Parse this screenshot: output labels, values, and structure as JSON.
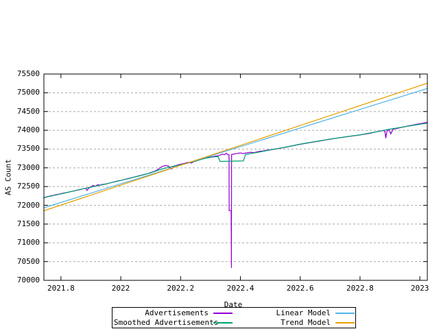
{
  "figure": {
    "background": "#ffffff",
    "frame_color": "#000000",
    "grid_color": "#a8a8a8"
  },
  "chart_data": {
    "type": "line",
    "title": "",
    "xlabel": "Date",
    "ylabel": "AS Count",
    "xlim": [
      2021.743,
      2023.025
    ],
    "ylim": [
      70000,
      75500
    ],
    "grid": "horizontal-dashed",
    "legend_position": "below-plot-boxed",
    "x_ticks": [
      {
        "value": 2021.8,
        "label": "2021.8"
      },
      {
        "value": 2022,
        "label": "2022"
      },
      {
        "value": 2022.2,
        "label": "2022.2"
      },
      {
        "value": 2022.4,
        "label": "2022.4"
      },
      {
        "value": 2022.6,
        "label": "2022.6"
      },
      {
        "value": 2022.8,
        "label": "2022.8"
      },
      {
        "value": 2023,
        "label": "2023"
      }
    ],
    "y_ticks": [
      {
        "value": 70000,
        "label": "70000"
      },
      {
        "value": 70500,
        "label": "70500"
      },
      {
        "value": 71000,
        "label": "71000"
      },
      {
        "value": 71500,
        "label": "71500"
      },
      {
        "value": 72000,
        "label": "72000"
      },
      {
        "value": 72500,
        "label": "72500"
      },
      {
        "value": 73000,
        "label": "73000"
      },
      {
        "value": 73500,
        "label": "73500"
      },
      {
        "value": 74000,
        "label": "74000"
      },
      {
        "value": 74500,
        "label": "74500"
      },
      {
        "value": 75000,
        "label": "75000"
      },
      {
        "value": 75500,
        "label": "75500"
      }
    ],
    "series": [
      {
        "name": "Advertisements",
        "color": "#9400d3",
        "points": [
          [
            2021.743,
            72190
          ],
          [
            2021.75,
            72225
          ],
          [
            2021.757,
            72235
          ],
          [
            2021.765,
            72250
          ],
          [
            2021.775,
            72265
          ],
          [
            2021.785,
            72285
          ],
          [
            2021.795,
            72300
          ],
          [
            2021.805,
            72320
          ],
          [
            2021.815,
            72335
          ],
          [
            2021.825,
            72350
          ],
          [
            2021.835,
            72370
          ],
          [
            2021.845,
            72385
          ],
          [
            2021.855,
            72405
          ],
          [
            2021.865,
            72420
          ],
          [
            2021.875,
            72445
          ],
          [
            2021.883,
            72455
          ],
          [
            2021.887,
            72395
          ],
          [
            2021.893,
            72460
          ],
          [
            2021.9,
            72490
          ],
          [
            2021.908,
            72530
          ],
          [
            2021.915,
            72505
          ],
          [
            2021.922,
            72545
          ],
          [
            2021.93,
            72540
          ],
          [
            2021.94,
            72560
          ],
          [
            2021.95,
            72565
          ],
          [
            2021.96,
            72590
          ],
          [
            2021.97,
            72610
          ],
          [
            2021.98,
            72630
          ],
          [
            2021.99,
            72650
          ],
          [
            2022.0,
            72665
          ],
          [
            2022.01,
            72685
          ],
          [
            2022.02,
            72705
          ],
          [
            2022.03,
            72725
          ],
          [
            2022.04,
            72745
          ],
          [
            2022.05,
            72765
          ],
          [
            2022.06,
            72785
          ],
          [
            2022.07,
            72805
          ],
          [
            2022.08,
            72825
          ],
          [
            2022.09,
            72845
          ],
          [
            2022.1,
            72875
          ],
          [
            2022.11,
            72900
          ],
          [
            2022.12,
            72935
          ],
          [
            2022.13,
            72995
          ],
          [
            2022.14,
            73040
          ],
          [
            2022.15,
            73060
          ],
          [
            2022.158,
            73050
          ],
          [
            2022.165,
            73005
          ],
          [
            2022.17,
            72965
          ],
          [
            2022.177,
            73045
          ],
          [
            2022.185,
            73060
          ],
          [
            2022.193,
            73080
          ],
          [
            2022.2,
            73095
          ],
          [
            2022.21,
            73110
          ],
          [
            2022.22,
            73135
          ],
          [
            2022.23,
            73150
          ],
          [
            2022.235,
            73125
          ],
          [
            2022.245,
            73165
          ],
          [
            2022.255,
            73190
          ],
          [
            2022.265,
            73220
          ],
          [
            2022.275,
            73240
          ],
          [
            2022.285,
            73260
          ],
          [
            2022.295,
            73280
          ],
          [
            2022.305,
            73295
          ],
          [
            2022.315,
            73310
          ],
          [
            2022.325,
            73320
          ],
          [
            2022.333,
            73340
          ],
          [
            2022.34,
            73365
          ],
          [
            2022.347,
            73350
          ],
          [
            2022.353,
            73390
          ],
          [
            2022.358,
            73345
          ],
          [
            2022.362,
            73345
          ],
          [
            2022.3625,
            71860
          ],
          [
            2022.369,
            71860
          ],
          [
            2022.37,
            70330
          ],
          [
            2022.3705,
            73355
          ],
          [
            2022.38,
            73370
          ],
          [
            2022.39,
            73385
          ],
          [
            2022.4,
            73395
          ],
          [
            2022.408,
            73380
          ],
          [
            2022.415,
            73390
          ],
          [
            2022.425,
            73405
          ],
          [
            2022.435,
            73415
          ],
          [
            2022.445,
            73400
          ],
          [
            2022.455,
            73425
          ],
          [
            2022.465,
            73440
          ],
          [
            2022.475,
            73450
          ],
          [
            2022.485,
            73465
          ],
          [
            2022.495,
            73475
          ],
          [
            2022.51,
            73490
          ],
          [
            2022.53,
            73520
          ],
          [
            2022.55,
            73545
          ],
          [
            2022.57,
            73580
          ],
          [
            2022.59,
            73610
          ],
          [
            2022.61,
            73640
          ],
          [
            2022.63,
            73670
          ],
          [
            2022.65,
            73695
          ],
          [
            2022.67,
            73720
          ],
          [
            2022.69,
            73750
          ],
          [
            2022.71,
            73775
          ],
          [
            2022.73,
            73800
          ],
          [
            2022.75,
            73820
          ],
          [
            2022.77,
            73845
          ],
          [
            2022.79,
            73865
          ],
          [
            2022.81,
            73890
          ],
          [
            2022.83,
            73915
          ],
          [
            2022.85,
            73950
          ],
          [
            2022.865,
            73975
          ],
          [
            2022.878,
            73995
          ],
          [
            2022.883,
            73975
          ],
          [
            2022.886,
            73790
          ],
          [
            2022.89,
            73985
          ],
          [
            2022.897,
            74015
          ],
          [
            2022.903,
            73905
          ],
          [
            2022.91,
            74025
          ],
          [
            2022.92,
            74045
          ],
          [
            2022.93,
            74060
          ],
          [
            2022.94,
            74080
          ],
          [
            2022.95,
            74095
          ],
          [
            2022.96,
            74115
          ],
          [
            2022.97,
            74130
          ],
          [
            2022.98,
            74145
          ],
          [
            2022.99,
            74160
          ],
          [
            2023.0,
            74175
          ],
          [
            2023.008,
            74185
          ],
          [
            2023.016,
            74200
          ],
          [
            2023.025,
            74210
          ]
        ]
      },
      {
        "name": "Smoothed Advertisements",
        "color": "#009e73",
        "points": [
          [
            2021.743,
            72205
          ],
          [
            2021.78,
            72270
          ],
          [
            2021.82,
            72340
          ],
          [
            2021.86,
            72415
          ],
          [
            2021.9,
            72485
          ],
          [
            2021.94,
            72550
          ],
          [
            2021.98,
            72625
          ],
          [
            2022.02,
            72700
          ],
          [
            2022.06,
            72780
          ],
          [
            2022.1,
            72865
          ],
          [
            2022.13,
            72950
          ],
          [
            2022.16,
            73015
          ],
          [
            2022.19,
            73060
          ],
          [
            2022.22,
            73115
          ],
          [
            2022.25,
            73180
          ],
          [
            2022.28,
            73250
          ],
          [
            2022.31,
            73290
          ],
          [
            2022.325,
            73300
          ],
          [
            2022.332,
            73170
          ],
          [
            2022.41,
            73185
          ],
          [
            2022.417,
            73355
          ],
          [
            2022.45,
            73400
          ],
          [
            2022.5,
            73475
          ],
          [
            2022.55,
            73550
          ],
          [
            2022.6,
            73630
          ],
          [
            2022.65,
            73700
          ],
          [
            2022.7,
            73765
          ],
          [
            2022.75,
            73825
          ],
          [
            2022.8,
            73880
          ],
          [
            2022.85,
            73955
          ],
          [
            2022.9,
            74030
          ],
          [
            2022.95,
            74095
          ],
          [
            2023.0,
            74160
          ],
          [
            2023.025,
            74190
          ]
        ]
      },
      {
        "name": "Linear Model",
        "color": "#56b4e9",
        "points": [
          [
            2021.743,
            71935
          ],
          [
            2023.025,
            75115
          ]
        ]
      },
      {
        "name": "Trend Model",
        "color": "#e69f00",
        "points": [
          [
            2021.743,
            71855
          ],
          [
            2023.025,
            75255
          ]
        ]
      }
    ]
  }
}
